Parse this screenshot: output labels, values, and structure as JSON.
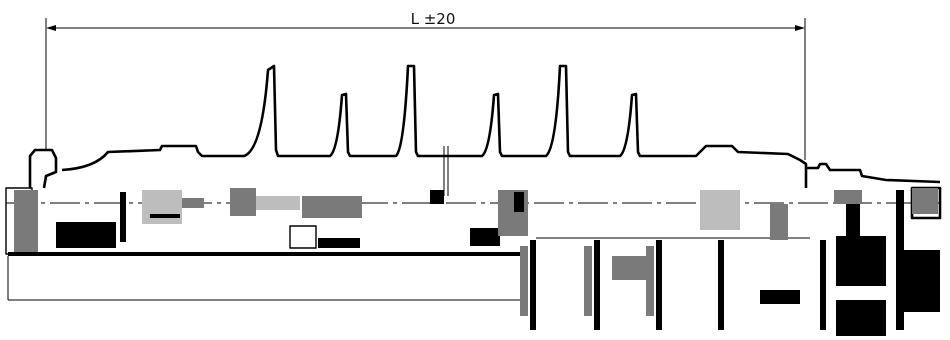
{
  "dimension": {
    "label": "L ±20"
  },
  "colors": {
    "line": "#000000",
    "background": "#ffffff",
    "hatch": "#7a7a7a"
  }
}
